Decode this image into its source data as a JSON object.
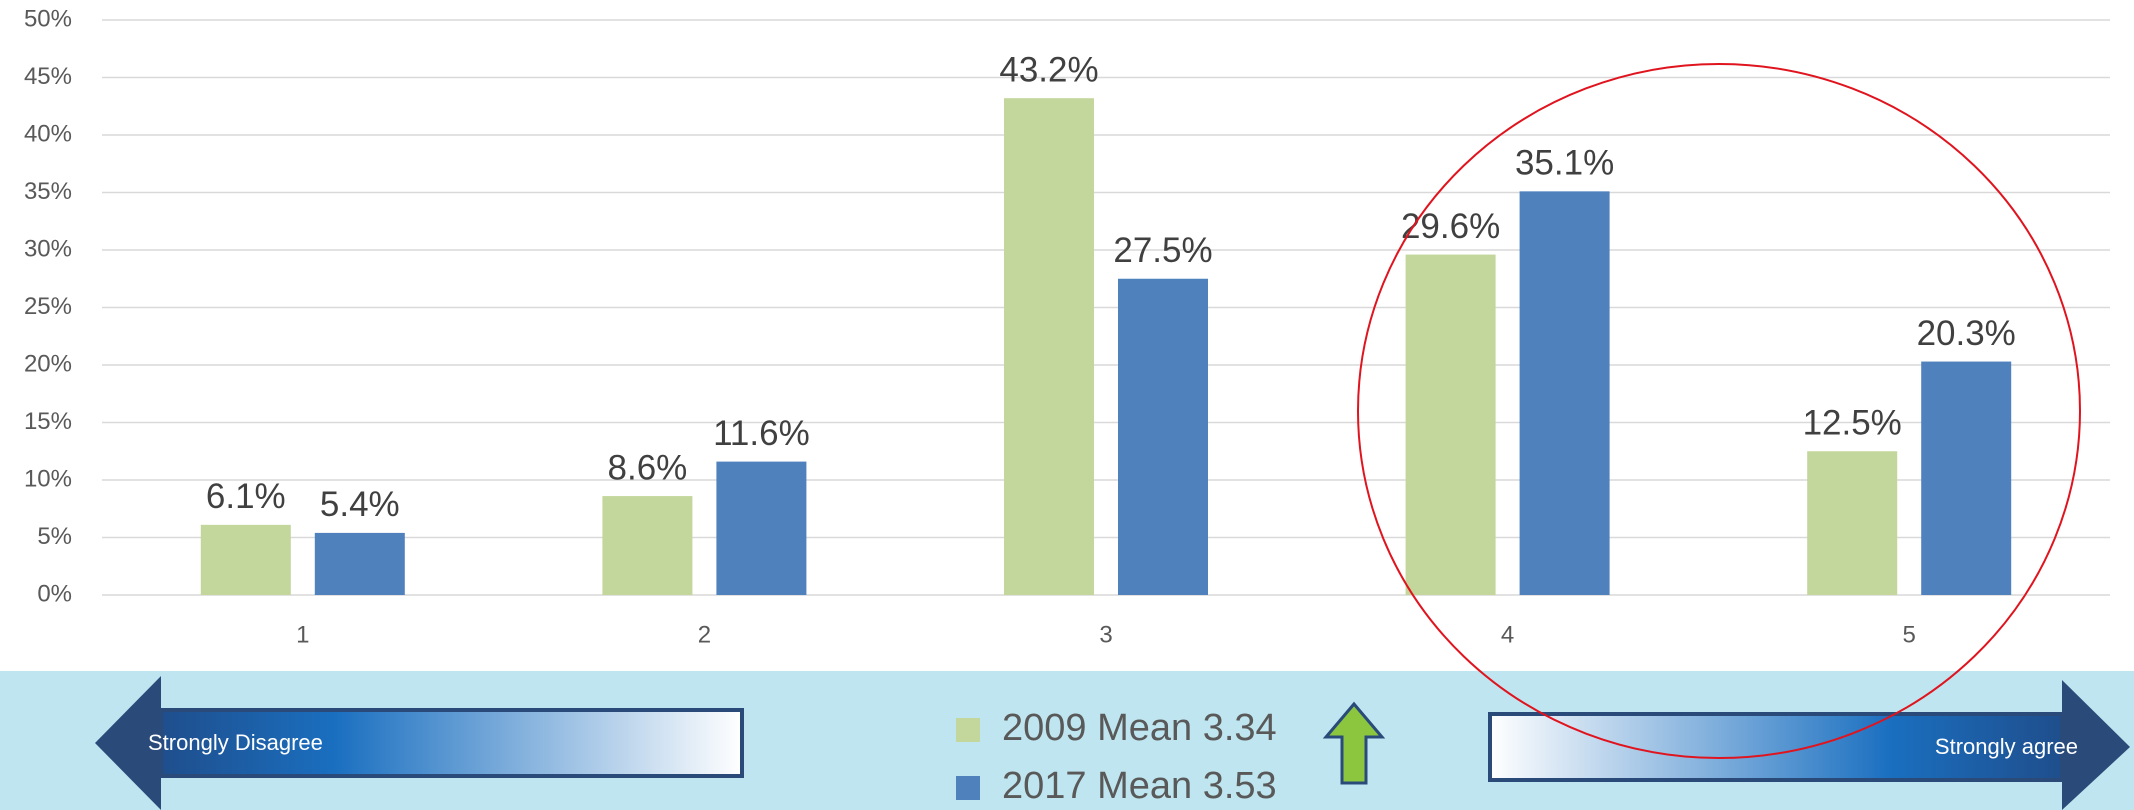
{
  "chart_data": {
    "type": "bar",
    "categories": [
      "1",
      "2",
      "3",
      "4",
      "5"
    ],
    "series": [
      {
        "name": "2009 Mean 3.34",
        "color": "#c3d69b",
        "values": [
          6.1,
          8.6,
          43.2,
          29.6,
          12.5
        ],
        "value_labels": [
          "6.1%",
          "8.6%",
          "43.2%",
          "29.6%",
          "12.5%"
        ]
      },
      {
        "name": "2017 Mean 3.53",
        "color": "#4f81bd",
        "values": [
          5.4,
          11.6,
          27.5,
          35.1,
          20.3
        ],
        "value_labels": [
          "5.4%",
          "11.6%",
          "27.5%",
          "35.1%",
          "20.3%"
        ]
      }
    ],
    "ylim": [
      0,
      50
    ],
    "yticks": [
      {
        "value": 0,
        "label": "0%"
      },
      {
        "value": 5,
        "label": "5%"
      },
      {
        "value": 10,
        "label": "10%"
      },
      {
        "value": 15,
        "label": "15%"
      },
      {
        "value": 20,
        "label": "20%"
      },
      {
        "value": 25,
        "label": "25%"
      },
      {
        "value": 30,
        "label": "30%"
      },
      {
        "value": 35,
        "label": "35%"
      },
      {
        "value": 40,
        "label": "40%"
      },
      {
        "value": 45,
        "label": "45%"
      },
      {
        "value": 50,
        "label": "50%"
      }
    ],
    "grid": true,
    "annotations": [
      "Strongly Disagree",
      "Strongly agree"
    ]
  }
}
